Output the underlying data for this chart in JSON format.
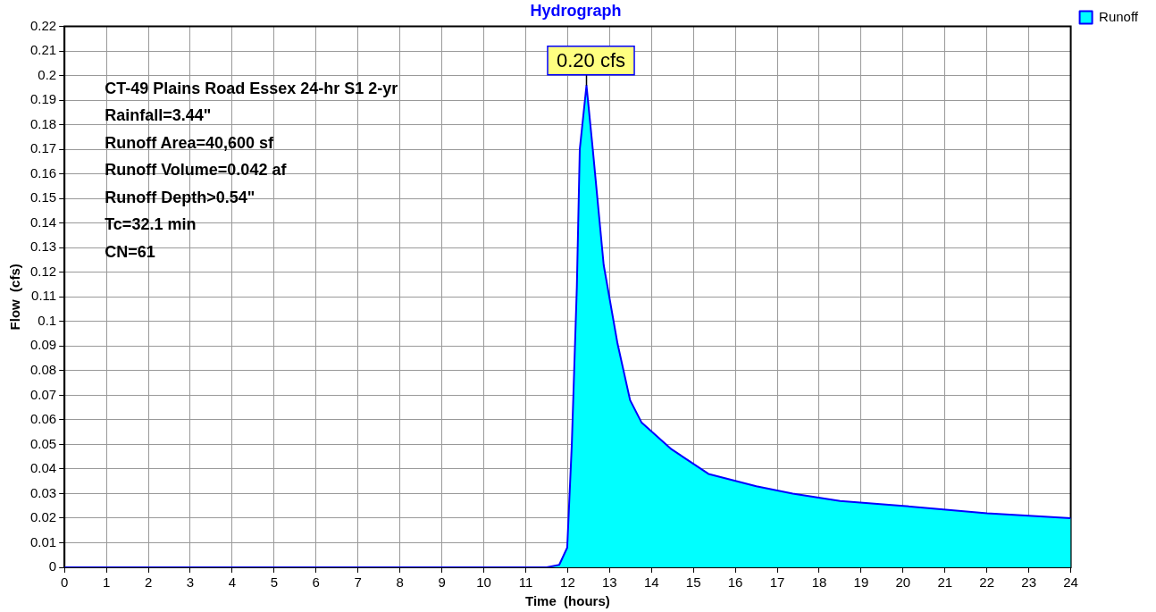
{
  "chart_data": {
    "type": "area",
    "title": "Hydrograph",
    "xlabel": "Time  (hours)",
    "ylabel": "Flow  (cfs)",
    "xlim": [
      0,
      24
    ],
    "xticks": [
      0,
      1,
      2,
      3,
      4,
      5,
      6,
      7,
      8,
      9,
      10,
      11,
      12,
      13,
      14,
      15,
      16,
      17,
      18,
      19,
      20,
      21,
      22,
      23,
      24
    ],
    "ylim": [
      0,
      0.22
    ],
    "yticks": [
      0,
      0.01,
      0.02,
      0.03,
      0.04,
      0.05,
      0.06,
      0.07,
      0.08,
      0.09,
      0.1,
      0.11,
      0.12,
      0.13,
      0.14,
      0.15,
      0.16,
      0.17,
      0.18,
      0.19,
      0.2,
      0.21,
      0.22
    ],
    "grid": true,
    "legend": "top right",
    "marker": "none",
    "line_style": "solid",
    "series": [
      {
        "name": "Runoff",
        "color": "#00ffff",
        "x": [
          0,
          4,
          8,
          11.5,
          11.8,
          11.99,
          12.1,
          12.22,
          12.29,
          12.45,
          12.6,
          12.86,
          13.19,
          13.49,
          13.76,
          14.48,
          15.36,
          16.5,
          17.37,
          18.5,
          20,
          22,
          24
        ],
        "values": [
          0,
          0,
          0,
          0,
          0.001,
          0.008,
          0.05,
          0.114,
          0.17,
          0.196,
          0.17,
          0.123,
          0.091,
          0.068,
          0.059,
          0.048,
          0.038,
          0.033,
          0.03,
          0.027,
          0.025,
          0.022,
          0.02
        ]
      }
    ],
    "annotations": [
      "CT-49 Plains Road Essex 24-hr S1 2-yr",
      "Rainfall=3.44\"",
      "Runoff Area=40,600 sf",
      "Runoff Volume=0.042 af",
      "Runoff Depth>0.54\"",
      "Tc=32.1 min",
      "CN=61",
      {
        "text": "0.20 cfs",
        "x": 12.45,
        "y": 0.196
      }
    ]
  }
}
